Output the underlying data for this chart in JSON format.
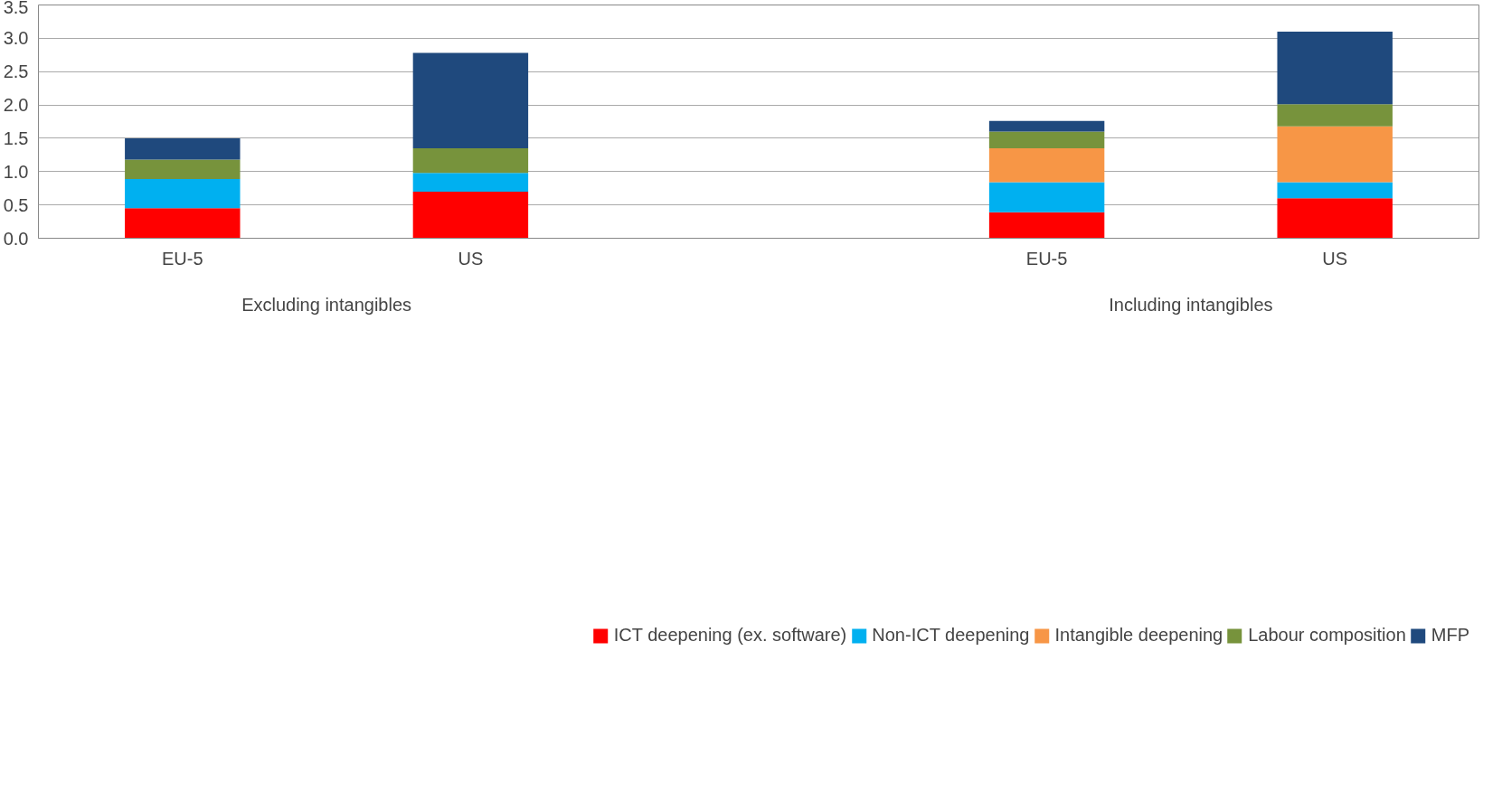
{
  "chart_data": {
    "type": "bar",
    "stacked": true,
    "categories": [
      "EU-5",
      "US",
      null,
      "EU-5",
      "US"
    ],
    "series": [
      {
        "name": "ICT deepening (ex. software)",
        "color": "#ff0000",
        "values": [
          0.45,
          0.7,
          null,
          0.39,
          0.6
        ]
      },
      {
        "name": "Non-ICT deepening",
        "color": "#00b0f0",
        "values": [
          0.44,
          0.28,
          null,
          0.45,
          0.24
        ]
      },
      {
        "name": "Intangible deepening",
        "color": "#f79646",
        "values": [
          null,
          null,
          null,
          0.51,
          0.84
        ]
      },
      {
        "name": "Labour composition",
        "color": "#77933c",
        "values": [
          0.29,
          0.37,
          null,
          0.25,
          0.33
        ]
      },
      {
        "name": "MFP",
        "color": "#1f497d",
        "values": [
          0.32,
          1.43,
          null,
          0.16,
          1.09
        ]
      }
    ],
    "ylim": [
      0,
      3.5
    ],
    "yticks": [
      {
        "value": 0,
        "label": "0.0"
      },
      {
        "value": 0.5,
        "label": "0.5"
      },
      {
        "value": 1,
        "label": "1.0"
      },
      {
        "value": 1.5,
        "label": "1.5"
      },
      {
        "value": 2,
        "label": "2.0"
      },
      {
        "value": 2.5,
        "label": "2.5"
      },
      {
        "value": 3,
        "label": "3.0"
      },
      {
        "value": 3.5,
        "label": "3.5"
      }
    ],
    "grid": "y",
    "legend": "bottom",
    "annotations": [
      "Excluding intangibles",
      "Including intangibles"
    ]
  }
}
